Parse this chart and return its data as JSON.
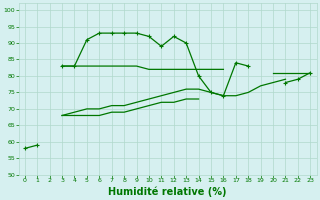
{
  "x": [
    0,
    1,
    2,
    3,
    4,
    5,
    6,
    7,
    8,
    9,
    10,
    11,
    12,
    13,
    14,
    15,
    16,
    17,
    18,
    19,
    20,
    21,
    22,
    23
  ],
  "line1": [
    58,
    59,
    null,
    83,
    83,
    91,
    93,
    93,
    93,
    93,
    92,
    89,
    92,
    90,
    80,
    75,
    74,
    84,
    83,
    null,
    null,
    78,
    79,
    81
  ],
  "line2": [
    null,
    null,
    null,
    83,
    83,
    83,
    83,
    83,
    83,
    83,
    82,
    82,
    82,
    82,
    82,
    82,
    82,
    null,
    null,
    null,
    81,
    81,
    81,
    81
  ],
  "line3": [
    null,
    null,
    null,
    68,
    69,
    70,
    70,
    71,
    71,
    72,
    73,
    74,
    75,
    76,
    76,
    75,
    74,
    74,
    75,
    77,
    78,
    79,
    null,
    null
  ],
  "line4": [
    null,
    null,
    null,
    68,
    68,
    68,
    68,
    69,
    69,
    70,
    71,
    72,
    72,
    73,
    73,
    null,
    null,
    null,
    null,
    null,
    null,
    null,
    null,
    null
  ],
  "background_color": "#d6f0f0",
  "grid_color": "#b0d8cc",
  "line_color": "#007700",
  "xlabel": "Humidité relative (%)",
  "xlabel_fontsize": 7,
  "ylim": [
    50,
    102
  ],
  "xlim": [
    -0.5,
    23.5
  ],
  "yticks": [
    50,
    55,
    60,
    65,
    70,
    75,
    80,
    85,
    90,
    95,
    100
  ],
  "xticks": [
    0,
    1,
    2,
    3,
    4,
    5,
    6,
    7,
    8,
    9,
    10,
    11,
    12,
    13,
    14,
    15,
    16,
    17,
    18,
    19,
    20,
    21,
    22,
    23
  ]
}
